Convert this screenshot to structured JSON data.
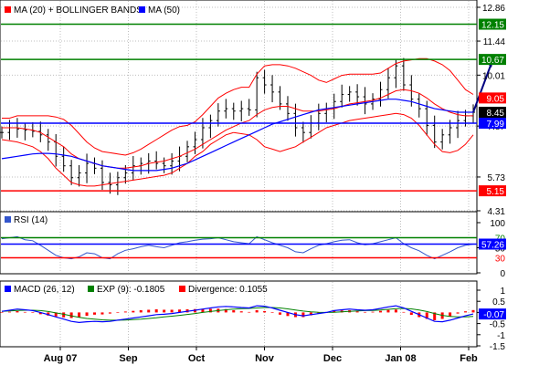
{
  "colors": {
    "ma20": "#ff0000",
    "ma50": "#0000ff",
    "resistance": "#008000",
    "support": "#ff0000",
    "pivot": "#0000ff",
    "bars": "#000000",
    "rsi": "#3355cc",
    "macd": "#0000ff",
    "exp": "#008000",
    "divergence": "#ff0000",
    "grid": "#bfbfbf"
  },
  "x_labels": [
    "Aug 07",
    "Sep",
    "Oct",
    "Nov",
    "Dec",
    "Jan 08",
    "Feb"
  ],
  "chart_data": [
    {
      "type": "ohlc",
      "legend": [
        "MA (20) + BOLLINGER BANDS",
        "MA (50)"
      ],
      "ylim": [
        4.31,
        12.86
      ],
      "y_ticks": [
        "12.86",
        "11.44",
        "10.01",
        "7.87",
        "5.73",
        "4.31"
      ],
      "horizontal_lines": [
        {
          "value": 12.15,
          "label": "12.15",
          "color": "#008000"
        },
        {
          "value": 10.67,
          "label": "10.67",
          "color": "#008000"
        },
        {
          "value": 9.05,
          "label": "9.05",
          "color": "#ff0000"
        },
        {
          "value": 8.45,
          "label": "8.45",
          "color": "#000000"
        },
        {
          "value": 7.99,
          "label": "7.99",
          "color": "#0000ff"
        },
        {
          "value": 5.15,
          "label": "5.15",
          "color": "#ff0000"
        }
      ],
      "target_arrow": {
        "from": 8.45,
        "to": 10.67
      },
      "price_close": [
        7.6,
        7.8,
        7.75,
        7.7,
        7.65,
        7.5,
        7.2,
        6.6,
        6.2,
        5.7,
        5.9,
        6.3,
        6.1,
        5.5,
        5.4,
        5.7,
        5.9,
        6.2,
        6.3,
        6.4,
        6.3,
        6.2,
        6.4,
        6.6,
        7.0,
        7.3,
        7.8,
        8.1,
        8.5,
        8.6,
        8.5,
        8.6,
        8.55,
        9.9,
        9.6,
        9.3,
        8.8,
        8.4,
        7.8,
        7.6,
        8.0,
        8.4,
        8.6,
        8.9,
        9.2,
        9.3,
        9.1,
        8.8,
        9.0,
        9.4,
        9.9,
        10.4,
        9.6,
        9.0,
        8.6,
        7.9,
        7.2,
        7.5,
        7.8,
        8.1,
        8.3,
        8.45
      ],
      "ma20": [
        7.8,
        7.8,
        7.8,
        7.75,
        7.7,
        7.6,
        7.4,
        7.2,
        7.0,
        6.7,
        6.5,
        6.4,
        6.3,
        6.2,
        6.15,
        6.1,
        6.1,
        6.15,
        6.2,
        6.3,
        6.35,
        6.4,
        6.5,
        6.6,
        6.75,
        6.9,
        7.1,
        7.3,
        7.5,
        7.7,
        7.85,
        8.0,
        8.1,
        8.35,
        8.55,
        8.65,
        8.7,
        8.7,
        8.6,
        8.5,
        8.5,
        8.5,
        8.55,
        8.6,
        8.7,
        8.8,
        8.85,
        8.9,
        8.95,
        9.05,
        9.2,
        9.35,
        9.4,
        9.35,
        9.25,
        9.05,
        8.8,
        8.6,
        8.45,
        8.35,
        8.3,
        8.3
      ],
      "bb_upper": [
        8.2,
        8.2,
        8.3,
        8.3,
        8.3,
        8.3,
        8.3,
        8.25,
        8.15,
        7.9,
        7.55,
        7.2,
        6.95,
        6.8,
        6.75,
        6.7,
        6.65,
        6.75,
        6.9,
        7.1,
        7.3,
        7.5,
        7.7,
        7.85,
        7.9,
        8.05,
        8.35,
        8.7,
        9.05,
        9.25,
        9.4,
        9.5,
        9.5,
        10.05,
        10.4,
        10.45,
        10.45,
        10.4,
        10.3,
        10.15,
        10.0,
        9.8,
        9.7,
        9.85,
        10.0,
        10.05,
        10.05,
        10.05,
        10.05,
        10.1,
        10.3,
        10.5,
        10.6,
        10.65,
        10.7,
        10.7,
        10.6,
        10.45,
        10.2,
        9.8,
        9.4,
        9.2
      ],
      "bb_lower": [
        7.3,
        7.25,
        7.2,
        7.1,
        7.0,
        6.8,
        6.5,
        6.1,
        5.8,
        5.5,
        5.4,
        5.35,
        5.35,
        5.4,
        5.45,
        5.5,
        5.55,
        5.6,
        5.65,
        5.7,
        5.75,
        5.8,
        5.9,
        6.1,
        6.3,
        6.6,
        6.8,
        7.1,
        7.3,
        7.5,
        7.6,
        7.55,
        7.5,
        7.3,
        7.0,
        6.9,
        6.8,
        6.9,
        7.0,
        7.2,
        7.4,
        7.6,
        7.8,
        7.9,
        8.0,
        8.1,
        8.15,
        8.2,
        8.25,
        8.3,
        8.35,
        8.4,
        8.35,
        8.2,
        7.9,
        7.5,
        7.1,
        6.8,
        6.75,
        6.85,
        7.1,
        7.5
      ],
      "ma50": [
        6.5,
        6.55,
        6.6,
        6.65,
        6.7,
        6.72,
        6.72,
        6.7,
        6.65,
        6.6,
        6.5,
        6.4,
        6.3,
        6.2,
        6.15,
        6.1,
        6.05,
        6.0,
        6.0,
        6.0,
        6.0,
        6.05,
        6.1,
        6.2,
        6.3,
        6.45,
        6.6,
        6.75,
        6.9,
        7.05,
        7.2,
        7.35,
        7.5,
        7.65,
        7.8,
        7.95,
        8.05,
        8.15,
        8.25,
        8.35,
        8.45,
        8.55,
        8.6,
        8.65,
        8.7,
        8.75,
        8.8,
        8.85,
        8.9,
        8.95,
        9.0,
        9.0,
        8.95,
        8.9,
        8.8,
        8.7,
        8.6,
        8.55,
        8.5,
        8.45,
        8.45,
        8.45
      ]
    },
    {
      "type": "line",
      "legend": [
        "RSI (14)"
      ],
      "ylim": [
        0,
        100
      ],
      "y_ticks": [
        "100",
        "50",
        "0"
      ],
      "horizontal_lines": [
        {
          "value": 70,
          "label": "70",
          "color": "#008000"
        },
        {
          "value": 57.26,
          "label": "57.26",
          "color": "#0000ff"
        },
        {
          "value": 30,
          "label": "30",
          "color": "#ff0000"
        }
      ],
      "values": [
        68,
        70,
        72,
        66,
        64,
        55,
        45,
        35,
        30,
        28,
        32,
        40,
        38,
        30,
        28,
        38,
        45,
        48,
        52,
        55,
        52,
        50,
        55,
        60,
        62,
        65,
        67,
        68,
        70,
        66,
        62,
        60,
        58,
        72,
        66,
        60,
        55,
        50,
        42,
        40,
        48,
        55,
        58,
        62,
        65,
        66,
        60,
        56,
        58,
        62,
        66,
        70,
        58,
        50,
        44,
        35,
        28,
        35,
        42,
        50,
        55,
        57.26
      ]
    },
    {
      "type": "line",
      "legend": [
        "MACD (26, 12)",
        "EXP (9): -0.1805",
        "Divergence: 0.1055"
      ],
      "ylim": [
        -1.5,
        1
      ],
      "y_ticks": [
        "1",
        "0.5",
        "0",
        "-0.5",
        "-1",
        "-1.5"
      ],
      "horizontal_lines": [
        {
          "value": -0.07,
          "label": "-0.07",
          "color": "#0000ff"
        }
      ],
      "macd": [
        0.05,
        0.1,
        0.15,
        0.12,
        0.08,
        0.0,
        -0.1,
        -0.2,
        -0.3,
        -0.4,
        -0.45,
        -0.42,
        -0.4,
        -0.42,
        -0.4,
        -0.35,
        -0.3,
        -0.25,
        -0.2,
        -0.15,
        -0.1,
        -0.08,
        -0.05,
        0.0,
        0.05,
        0.1,
        0.15,
        0.2,
        0.25,
        0.27,
        0.25,
        0.22,
        0.2,
        0.3,
        0.28,
        0.2,
        0.1,
        0.0,
        -0.1,
        -0.15,
        -0.1,
        -0.05,
        0.0,
        0.08,
        0.12,
        0.15,
        0.12,
        0.1,
        0.12,
        0.18,
        0.25,
        0.3,
        0.2,
        0.05,
        -0.1,
        -0.25,
        -0.4,
        -0.42,
        -0.35,
        -0.25,
        -0.15,
        -0.07
      ],
      "exp": [
        0.05,
        0.07,
        0.09,
        0.1,
        0.1,
        0.08,
        0.04,
        -0.02,
        -0.08,
        -0.15,
        -0.22,
        -0.27,
        -0.3,
        -0.33,
        -0.35,
        -0.35,
        -0.34,
        -0.32,
        -0.3,
        -0.27,
        -0.24,
        -0.2,
        -0.17,
        -0.13,
        -0.09,
        -0.05,
        0.0,
        0.04,
        0.08,
        0.12,
        0.15,
        0.17,
        0.18,
        0.2,
        0.22,
        0.22,
        0.2,
        0.16,
        0.11,
        0.06,
        0.03,
        0.01,
        0.0,
        0.01,
        0.03,
        0.05,
        0.07,
        0.08,
        0.09,
        0.11,
        0.14,
        0.17,
        0.18,
        0.16,
        0.11,
        0.04,
        -0.05,
        -0.13,
        -0.18,
        -0.2,
        -0.2,
        -0.1805
      ],
      "divergence": [
        0.0,
        0.03,
        0.06,
        0.02,
        -0.02,
        -0.08,
        -0.14,
        -0.18,
        -0.22,
        -0.25,
        -0.23,
        -0.15,
        -0.1,
        -0.09,
        -0.05,
        0.0,
        0.04,
        0.07,
        0.1,
        0.12,
        0.14,
        0.12,
        0.12,
        0.13,
        0.14,
        0.15,
        0.15,
        0.16,
        0.17,
        0.15,
        0.1,
        0.05,
        0.02,
        0.1,
        0.06,
        -0.02,
        -0.1,
        -0.16,
        -0.21,
        -0.21,
        -0.13,
        -0.06,
        0.0,
        0.07,
        0.09,
        0.1,
        0.05,
        0.02,
        0.03,
        0.07,
        0.11,
        0.13,
        0.02,
        -0.11,
        -0.21,
        -0.29,
        -0.35,
        -0.29,
        -0.17,
        -0.05,
        0.05,
        0.1055
      ]
    }
  ]
}
